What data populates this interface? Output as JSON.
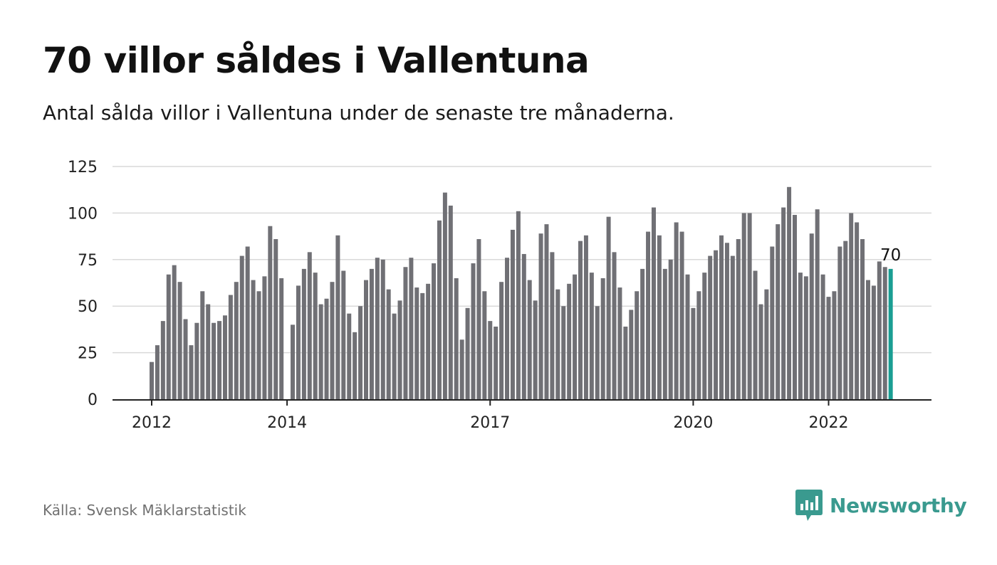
{
  "title": "70 villor såldes i Vallentuna",
  "subtitle": "Antal sålda villor i Vallentuna under de senaste tre månaderna.",
  "source": "Källa: Svensk Mäklarstatistik",
  "brand": {
    "name": "Newsworthy",
    "icon": "newsworthy-logo-icon"
  },
  "colors": {
    "bar": "#707075",
    "highlight": "#1a9e93",
    "brand": "#3a9a8f",
    "grid": "#d9d9d9",
    "axis": "#222222"
  },
  "chart_data": {
    "type": "bar",
    "title": "70 villor såldes i Vallentuna",
    "subtitle": "Antal sålda villor i Vallentuna under de senaste tre månaderna.",
    "xlabel": "",
    "ylabel": "",
    "ylim": [
      0,
      125
    ],
    "yticks": [
      0,
      25,
      50,
      75,
      100,
      125
    ],
    "grid": true,
    "legend": "none",
    "x_start": "2012-01",
    "x_end": "2022-11",
    "x_ticks": [
      {
        "label": "2012",
        "x": "2012-01"
      },
      {
        "label": "2014",
        "x": "2014-01"
      },
      {
        "label": "2017",
        "x": "2017-01"
      },
      {
        "label": "2020",
        "x": "2020-01"
      },
      {
        "label": "2022",
        "x": "2022-01"
      }
    ],
    "values": [
      20,
      29,
      42,
      67,
      72,
      63,
      43,
      29,
      41,
      58,
      51,
      41,
      42,
      45,
      56,
      63,
      77,
      82,
      64,
      58,
      66,
      93,
      86,
      65,
      0,
      40,
      61,
      70,
      79,
      68,
      51,
      54,
      63,
      88,
      69,
      46,
      36,
      50,
      64,
      70,
      76,
      75,
      59,
      46,
      53,
      71,
      76,
      60,
      57,
      62,
      73,
      96,
      111,
      104,
      65,
      32,
      49,
      73,
      86,
      58,
      42,
      39,
      63,
      76,
      91,
      101,
      78,
      64,
      53,
      89,
      94,
      79,
      59,
      50,
      62,
      67,
      85,
      88,
      68,
      50,
      65,
      98,
      79,
      60,
      39,
      48,
      58,
      70,
      90,
      103,
      88,
      70,
      75,
      95,
      90,
      67,
      49,
      58,
      68,
      77,
      80,
      88,
      84,
      77,
      86,
      100,
      100,
      69,
      51,
      59,
      82,
      94,
      103,
      114,
      99,
      68,
      66,
      89,
      102,
      67,
      55,
      58,
      82,
      85,
      100,
      95,
      86,
      64,
      61,
      74,
      71,
      70
    ],
    "highlight_last": true,
    "last_value_label": "70"
  }
}
